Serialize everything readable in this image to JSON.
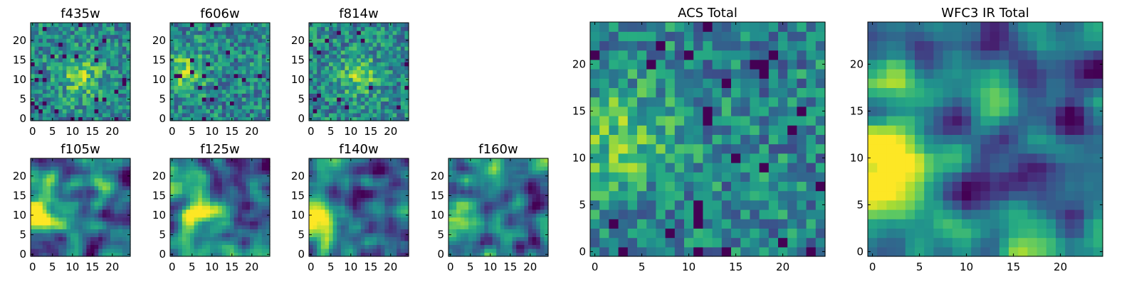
{
  "chart_data": [
    {
      "type": "heatmap",
      "title": "f435w",
      "ncols": 25,
      "nrows": 25,
      "xticks": [
        0,
        5,
        10,
        15,
        20
      ],
      "yticks": [
        0,
        5,
        10,
        15,
        20
      ],
      "colormap": "viridis",
      "pattern": "noise",
      "peak": [
        12,
        11
      ],
      "seed": 3
    },
    {
      "type": "heatmap",
      "title": "f606w",
      "ncols": 25,
      "nrows": 25,
      "xticks": [
        0,
        5,
        10,
        15,
        20
      ],
      "yticks": [
        0,
        5,
        10,
        15,
        20
      ],
      "colormap": "viridis",
      "pattern": "noise",
      "peak": [
        3,
        12
      ],
      "seed": 7
    },
    {
      "type": "heatmap",
      "title": "f814w",
      "ncols": 25,
      "nrows": 25,
      "xticks": [
        0,
        5,
        10,
        15,
        20
      ],
      "yticks": [
        0,
        5,
        10,
        15,
        20
      ],
      "colormap": "viridis",
      "pattern": "noise",
      "peak": [
        12,
        11
      ],
      "seed": 11
    },
    {
      "type": "heatmap",
      "title": "f105w",
      "ncols": 25,
      "nrows": 25,
      "xticks": [
        0,
        5,
        10,
        15,
        20
      ],
      "yticks": [
        0,
        5,
        10,
        15,
        20
      ],
      "colormap": "viridis",
      "pattern": "smooth",
      "peak": [
        2,
        10
      ],
      "seed": 13
    },
    {
      "type": "heatmap",
      "title": "f125w",
      "ncols": 25,
      "nrows": 25,
      "xticks": [
        0,
        5,
        10,
        15,
        20
      ],
      "yticks": [
        0,
        5,
        10,
        15,
        20
      ],
      "colormap": "viridis",
      "pattern": "smooth",
      "peak": [
        5,
        11
      ],
      "seed": 17
    },
    {
      "type": "heatmap",
      "title": "f140w",
      "ncols": 25,
      "nrows": 25,
      "xticks": [
        0,
        5,
        10,
        15,
        20
      ],
      "yticks": [
        0,
        5,
        10,
        15,
        20
      ],
      "colormap": "viridis",
      "pattern": "smooth",
      "peak": [
        2,
        9
      ],
      "seed": 19
    },
    {
      "type": "heatmap",
      "title": "f160w",
      "ncols": 25,
      "nrows": 25,
      "xticks": [
        0,
        5,
        10,
        15,
        20
      ],
      "yticks": [
        0,
        5,
        10,
        15,
        20
      ],
      "colormap": "viridis",
      "pattern": "smooth",
      "peak": [
        1,
        9
      ],
      "seed": 23
    },
    {
      "type": "heatmap",
      "title": "ACS Total",
      "ncols": 25,
      "nrows": 25,
      "xticks": [
        0,
        5,
        10,
        15,
        20
      ],
      "yticks": [
        0,
        5,
        10,
        15,
        20
      ],
      "colormap": "viridis",
      "pattern": "noise",
      "peak": [
        3,
        12
      ],
      "seed": 29
    },
    {
      "type": "heatmap",
      "title": "WFC3 IR Total",
      "ncols": 25,
      "nrows": 25,
      "xticks": [
        0,
        5,
        10,
        15,
        20
      ],
      "yticks": [
        0,
        5,
        10,
        15,
        20
      ],
      "colormap": "viridis",
      "pattern": "smooth",
      "peak": [
        1,
        9
      ],
      "seed": 31
    }
  ]
}
